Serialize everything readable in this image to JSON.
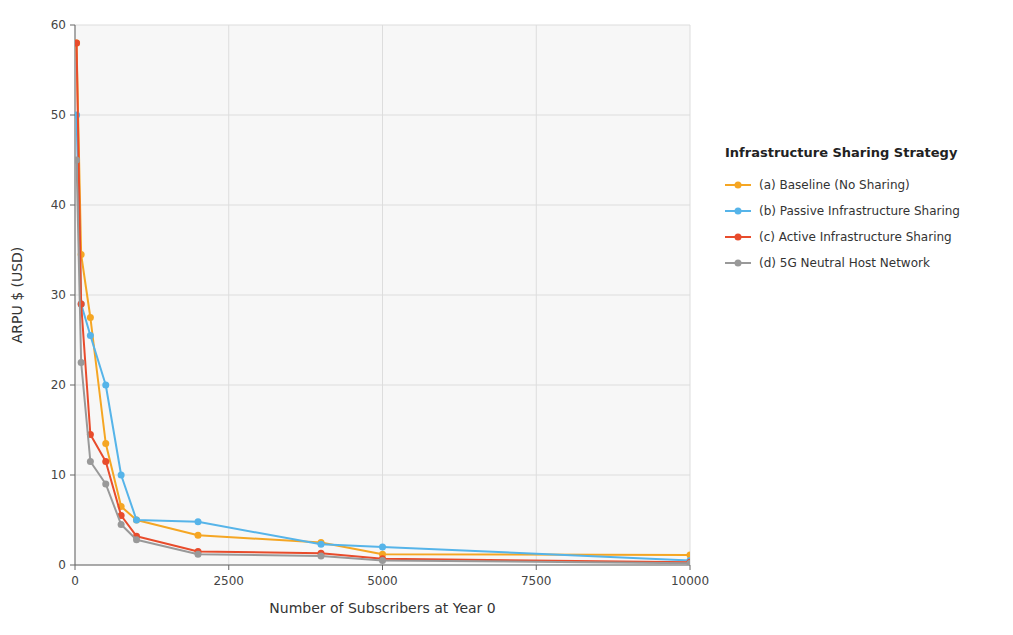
{
  "chart_data": {
    "type": "line",
    "xlabel": "Number of Subscribers at Year 0",
    "ylabel": "ARPU $ (USD)",
    "legend_title": "Infrastructure Sharing Strategy",
    "x": [
      25,
      100,
      250,
      500,
      750,
      1000,
      2000,
      4000,
      5000,
      10000
    ],
    "series": [
      {
        "name": "(a) Baseline (No Sharing)",
        "color": "#F5A623",
        "values": [
          58.0,
          34.5,
          27.5,
          13.5,
          6.5,
          5.0,
          3.3,
          2.5,
          1.2,
          1.1
        ]
      },
      {
        "name": "(b) Passive Infrastructure Sharing",
        "color": "#56B4E9",
        "values": [
          50.0,
          29.0,
          25.5,
          20.0,
          10.0,
          5.0,
          4.8,
          2.3,
          2.0,
          0.5
        ]
      },
      {
        "name": "(c) Active Infrastructure Sharing",
        "color": "#E84C2C",
        "values": [
          58.0,
          29.0,
          14.5,
          11.5,
          5.5,
          3.2,
          1.5,
          1.3,
          0.7,
          0.3
        ]
      },
      {
        "name": "(d) 5G Neutral Host Network",
        "color": "#999999",
        "values": [
          45.0,
          22.5,
          11.5,
          9.0,
          4.5,
          2.8,
          1.2,
          1.0,
          0.5,
          0.2
        ]
      }
    ],
    "xlim": [
      0,
      10000
    ],
    "ylim": [
      0,
      60
    ],
    "xticks": [
      0,
      2500,
      5000,
      7500,
      10000
    ],
    "yticks": [
      0,
      10,
      20,
      30,
      40,
      50,
      60
    ],
    "grid": true,
    "legend": "right",
    "marker": "circle"
  }
}
